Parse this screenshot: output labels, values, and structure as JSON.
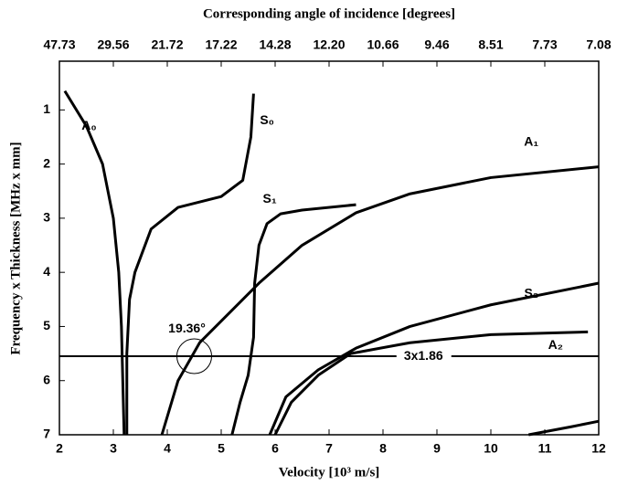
{
  "chart_data": {
    "type": "line",
    "xlabel": "Velocity [10³ m/s]",
    "ylabel": "Frequency x Thickness [MHz x mm]",
    "x2label": "Corresponding angle of incidence [degrees]",
    "xlim": [
      2,
      12
    ],
    "xticks": [
      2,
      3,
      4,
      5,
      6,
      7,
      8,
      9,
      10,
      11,
      12
    ],
    "ylim": [
      0.1,
      7
    ],
    "yticks": [
      1,
      2,
      3,
      4,
      5,
      6,
      7
    ],
    "y_inverted": true,
    "x2ticks": [
      {
        "value": 2,
        "label": "47.73"
      },
      {
        "value": 3,
        "label": "29.56"
      },
      {
        "value": 4,
        "label": "21.72"
      },
      {
        "value": 5,
        "label": "17.22"
      },
      {
        "value": 6,
        "label": "14.28"
      },
      {
        "value": 7,
        "label": "12.20"
      },
      {
        "value": 8,
        "label": "10.66"
      },
      {
        "value": 9,
        "label": "9.46"
      },
      {
        "value": 10,
        "label": "8.51"
      },
      {
        "value": 11,
        "label": "7.73"
      },
      {
        "value": 12,
        "label": "7.08"
      }
    ],
    "color": "#000000",
    "series": [
      {
        "name": "A₀",
        "x": [
          2.1,
          2.5,
          2.8,
          3.0,
          3.1,
          3.15,
          3.2
        ],
        "values": [
          0.65,
          1.3,
          2.0,
          3.0,
          4.0,
          5.0,
          7.0
        ]
      },
      {
        "name": "S₀",
        "x": [
          5.6,
          5.55,
          5.4,
          5.0,
          4.2,
          3.7,
          3.4,
          3.3,
          3.25,
          3.25
        ],
        "values": [
          0.7,
          1.5,
          2.3,
          2.6,
          2.8,
          3.2,
          4.0,
          4.5,
          5.5,
          7.0
        ]
      },
      {
        "name": "S₁",
        "x": [
          7.5,
          6.5,
          6.1,
          5.85,
          5.7,
          5.62,
          5.6,
          5.5,
          5.35,
          5.2
        ],
        "values": [
          2.75,
          2.85,
          2.92,
          3.1,
          3.5,
          4.2,
          5.2,
          5.9,
          6.4,
          7.0
        ]
      },
      {
        "name": "A₁",
        "x": [
          3.9,
          4.2,
          4.6,
          5.2,
          5.7,
          6.5,
          7.5,
          8.5,
          10,
          12
        ],
        "values": [
          7.0,
          6.0,
          5.3,
          4.7,
          4.2,
          3.5,
          2.9,
          2.55,
          2.25,
          2.05
        ]
      },
      {
        "name": "S₂",
        "x": [
          5.9,
          6.2,
          6.8,
          7.5,
          8.5,
          10,
          12
        ],
        "values": [
          7.0,
          6.3,
          5.8,
          5.4,
          5.0,
          4.6,
          4.2
        ]
      },
      {
        "name": "A₂",
        "x": [
          6.0,
          6.3,
          6.8,
          7.4,
          8.5,
          10,
          11.8
        ],
        "values": [
          7.0,
          6.4,
          5.9,
          5.5,
          5.3,
          5.15,
          5.1
        ]
      },
      {
        "x": [
          10.7,
          11.5,
          12
        ],
        "values": [
          7.0,
          6.85,
          6.75
        ]
      }
    ],
    "hline": {
      "value": 5.55,
      "label": "3x1.86"
    },
    "annotation": {
      "text": "19.36°",
      "x": 4.5,
      "y": 5.55
    }
  }
}
